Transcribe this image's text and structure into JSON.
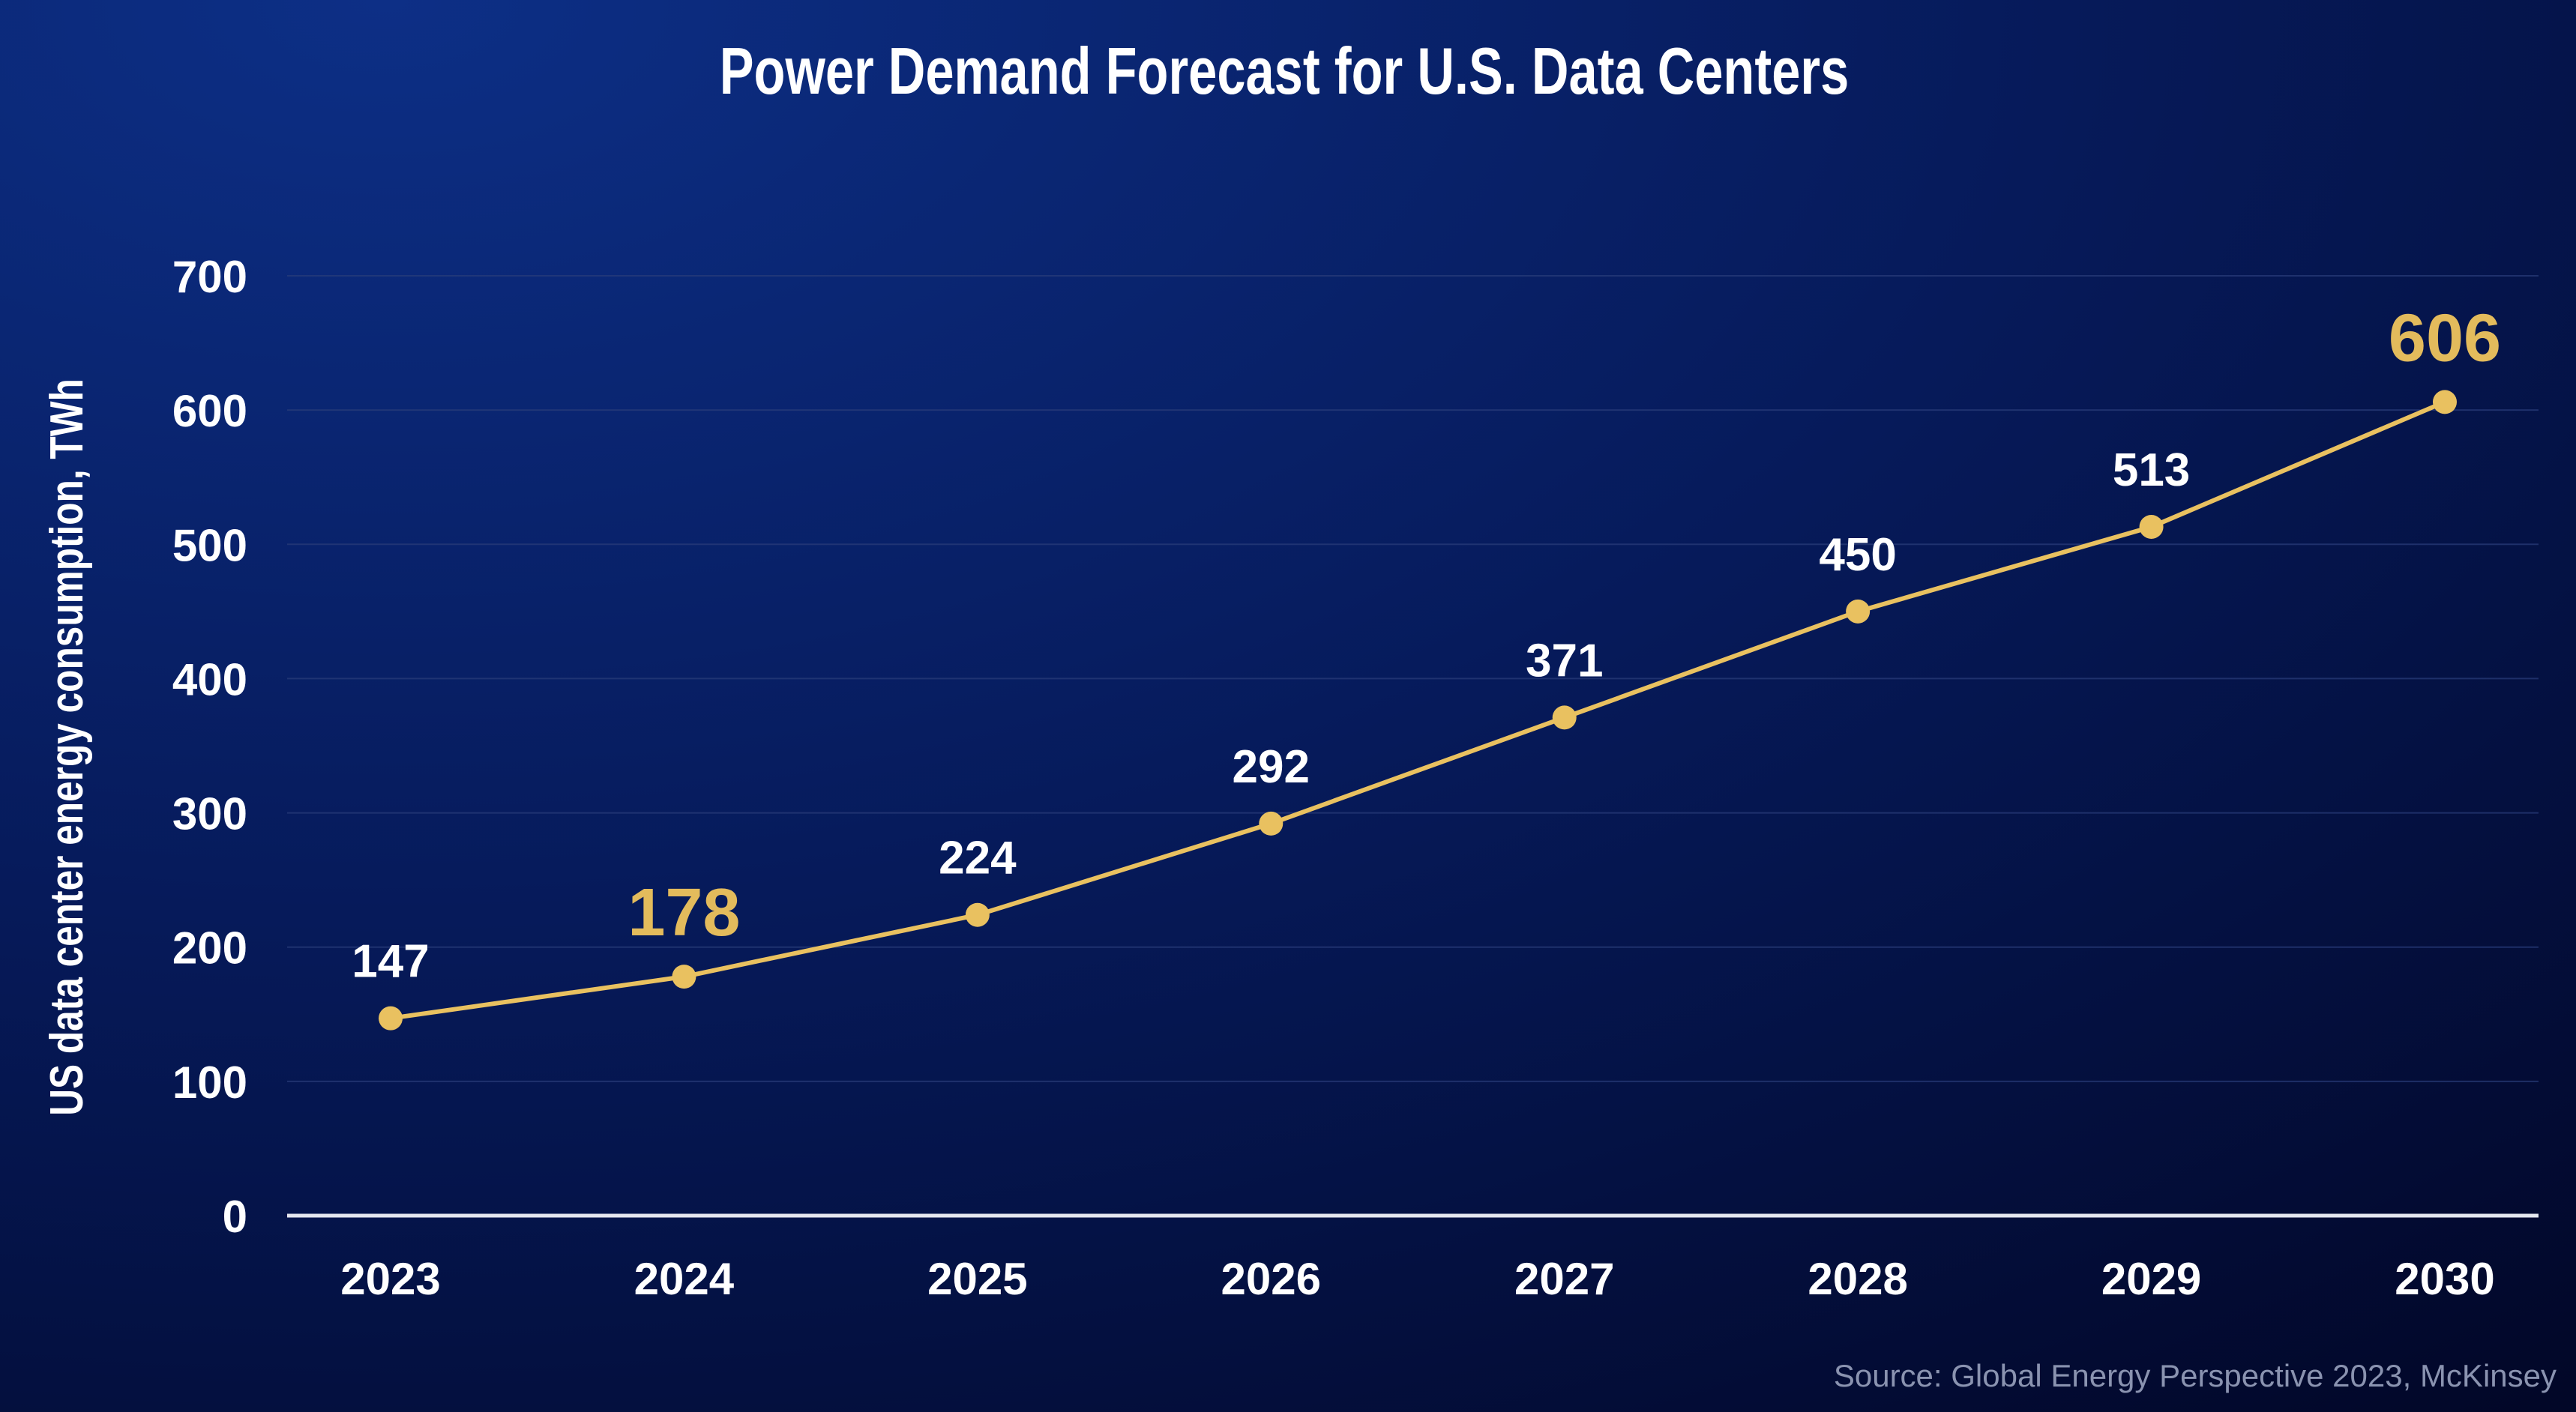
{
  "chart_data": {
    "type": "line",
    "title": "Power Demand Forecast for U.S. Data Centers",
    "xlabel": "",
    "ylabel": "US data center energy consumption, TWh",
    "categories": [
      "2023",
      "2024",
      "2025",
      "2026",
      "2027",
      "2028",
      "2029",
      "2030"
    ],
    "series": [
      {
        "name": "US data center energy consumption",
        "values": [
          147,
          178,
          224,
          292,
          371,
          450,
          513,
          606
        ]
      }
    ],
    "data_labels": [
      "147",
      "178",
      "224",
      "292",
      "371",
      "450",
      "513",
      "606"
    ],
    "highlighted_labels": [
      1,
      7
    ],
    "ylim": [
      0,
      700
    ],
    "yticks": [
      0,
      100,
      200,
      300,
      400,
      500,
      600,
      700
    ],
    "ytick_labels": [
      "0",
      "100",
      "200",
      "300",
      "400",
      "500",
      "600",
      "700"
    ],
    "grid": true,
    "legend": "none",
    "source": "Source: Global Energy Perspective 2023, McKinsey",
    "colors": {
      "line": "#e9c160",
      "highlight": "#e3bb5c",
      "text": "#ffffff",
      "grid": "#2a3d7a",
      "source": "#8a93b0"
    }
  }
}
